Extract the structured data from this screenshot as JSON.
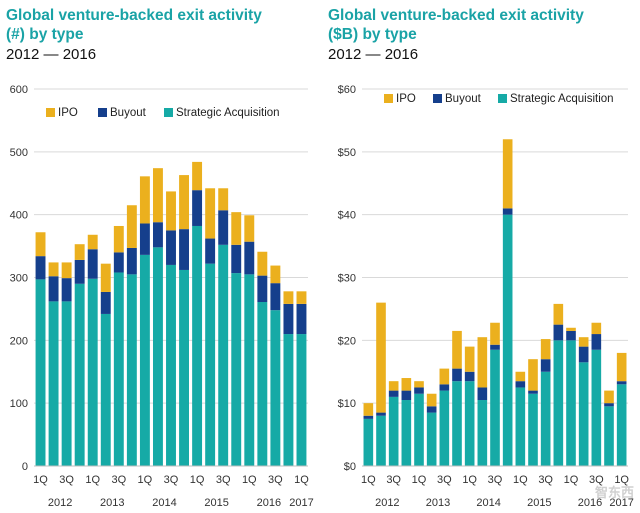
{
  "colors": {
    "ipo": "#ebb01e",
    "buyout": "#153f8c",
    "strategic": "#16aaa6",
    "grid": "#d9d9d9",
    "title": "#1aa3a6"
  },
  "watermark": {
    "text": "智东西"
  },
  "chart_data": [
    {
      "type": "bar",
      "stacked": true,
      "title": "Global venture-backed exit activity (#) by type",
      "title_line1": "Global venture-backed exit activity",
      "title_line2": "(#) by type",
      "subtitle": "2012 — 2016",
      "ylim": [
        0,
        600
      ],
      "yticks": [
        0,
        100,
        200,
        300,
        400,
        500,
        600
      ],
      "ytick_labels": [
        "0",
        "100",
        "200",
        "300",
        "400",
        "500",
        "600"
      ],
      "quarter_labels": [
        "1Q",
        "3Q",
        "1Q",
        "3Q",
        "1Q",
        "3Q",
        "1Q",
        "3Q",
        "1Q",
        "3Q",
        "1Q"
      ],
      "quarter_label_index": [
        0,
        2,
        4,
        6,
        8,
        10,
        12,
        14,
        16,
        18,
        20
      ],
      "year_labels": [
        "2012",
        "2013",
        "2014",
        "2015",
        "2016",
        "2017"
      ],
      "year_label_center": [
        1.5,
        5.5,
        9.5,
        13.5,
        17.5,
        20
      ],
      "legend": [
        "IPO",
        "Buyout",
        "Strategic Acquisition"
      ],
      "series": [
        {
          "name": "Strategic Acquisition",
          "key": "strategic",
          "values": [
            297,
            262,
            262,
            290,
            298,
            242,
            308,
            305,
            336,
            348,
            320,
            312,
            382,
            322,
            352,
            307,
            305,
            261,
            248,
            210,
            210
          ]
        },
        {
          "name": "Buyout",
          "key": "buyout",
          "values": [
            37,
            40,
            37,
            38,
            47,
            35,
            32,
            42,
            50,
            40,
            55,
            65,
            57,
            40,
            55,
            45,
            52,
            42,
            43,
            48,
            48
          ]
        },
        {
          "name": "IPO",
          "key": "ipo",
          "values": [
            38,
            22,
            25,
            25,
            23,
            45,
            42,
            68,
            75,
            86,
            62,
            86,
            45,
            80,
            35,
            52,
            42,
            38,
            28,
            20,
            20
          ]
        }
      ]
    },
    {
      "type": "bar",
      "stacked": true,
      "title": "Global venture-backed exit activity ($B) by type",
      "title_line1": "Global venture-backed exit activity",
      "title_line2": "($B) by type",
      "subtitle": "2012 — 2016",
      "ylim": [
        0,
        60
      ],
      "yticks": [
        0,
        10,
        20,
        30,
        40,
        50,
        60
      ],
      "ytick_labels": [
        "$0",
        "$10",
        "$20",
        "$30",
        "$40",
        "$50",
        "$60"
      ],
      "quarter_labels": [
        "1Q",
        "3Q",
        "1Q",
        "3Q",
        "1Q",
        "3Q",
        "1Q",
        "3Q",
        "1Q",
        "3Q",
        "1Q"
      ],
      "quarter_label_index": [
        0,
        2,
        4,
        6,
        8,
        10,
        12,
        14,
        16,
        18,
        20
      ],
      "year_labels": [
        "2012",
        "2013",
        "2014",
        "2015",
        "2016",
        "2017"
      ],
      "year_label_center": [
        1.5,
        5.5,
        9.5,
        13.5,
        17.5,
        20
      ],
      "legend": [
        "IPO",
        "Buyout",
        "Strategic Acquisition"
      ],
      "series": [
        {
          "name": "Strategic Acquisition",
          "key": "strategic",
          "values": [
            7.5,
            8,
            11,
            10.5,
            11.5,
            8.5,
            12,
            13.5,
            13.5,
            10.5,
            18.5,
            40,
            12.5,
            11.5,
            15,
            20,
            20,
            16.5,
            18.5,
            9.5,
            13
          ]
        },
        {
          "name": "Buyout",
          "key": "buyout",
          "values": [
            0.5,
            0.5,
            1,
            1.5,
            1,
            1,
            1,
            2,
            1.5,
            2,
            0.8,
            1,
            1,
            0.5,
            2,
            2.5,
            1.5,
            2.5,
            2.5,
            0.5,
            0.5
          ]
        },
        {
          "name": "IPO",
          "key": "ipo",
          "values": [
            2,
            17.5,
            1.5,
            2,
            1,
            2,
            2.5,
            6,
            4,
            8,
            3.5,
            11,
            1.5,
            5,
            3.2,
            3.3,
            0.5,
            1.5,
            1.8,
            2,
            4.5
          ]
        }
      ]
    }
  ]
}
